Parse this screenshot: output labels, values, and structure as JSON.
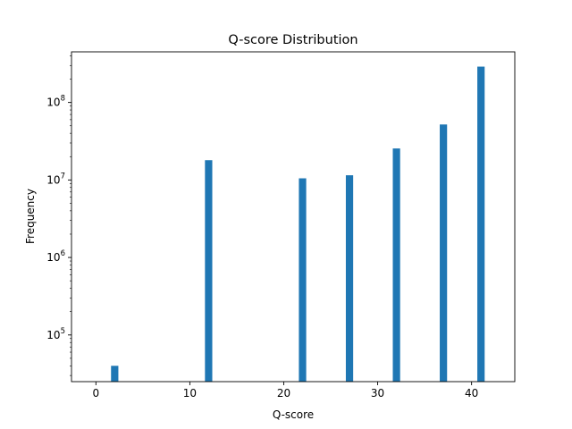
{
  "chart_data": {
    "type": "bar",
    "title": "Q-score Distribution",
    "xlabel": "Q-score",
    "ylabel": "Frequency",
    "x": [
      2,
      12,
      22,
      27,
      32,
      37,
      41
    ],
    "values": [
      40000,
      18000000,
      10500000,
      11500000,
      25500000,
      52000000,
      290000000
    ],
    "xlim": [
      -2.6,
      44.6
    ],
    "ylim": [
      25000,
      450000000
    ],
    "yscale": "log",
    "bar_width": 0.78,
    "xticks": [
      0,
      10,
      20,
      30,
      40
    ],
    "xtick_labels": [
      "0",
      "10",
      "20",
      "30",
      "40"
    ],
    "yticks": [
      100000,
      1000000,
      10000000,
      100000000
    ],
    "ytick_base": [
      "10",
      "10",
      "10",
      "10"
    ],
    "ytick_exp": [
      "5",
      "6",
      "7",
      "8"
    ],
    "grid": false,
    "legend": "none",
    "bar_color": "#1f77b4"
  }
}
